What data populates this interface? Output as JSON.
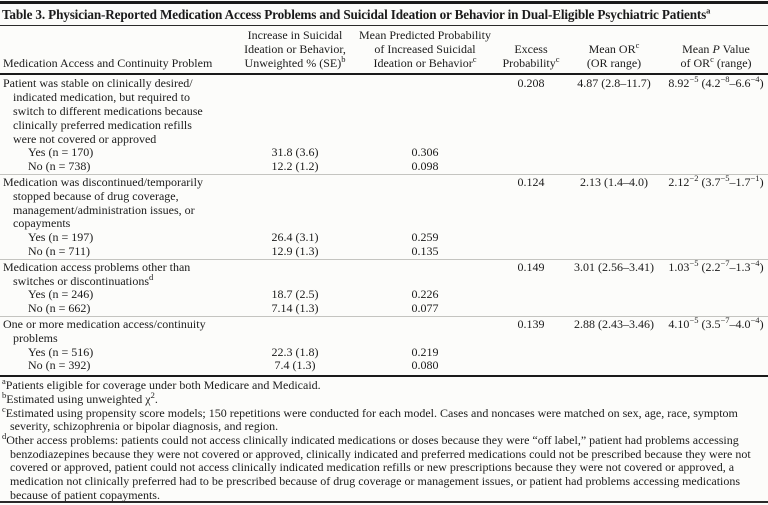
{
  "title": {
    "text": "Table 3. Physician-Reported Medication Access Problems and Suicidal Ideation or Behavior in Dual-Eligible Psychiatric Patients",
    "sup": "a"
  },
  "columns": [
    "Medication Access and Continuity Problem",
    "Increase in Suicidal\nIdeation or Behavior,\nUnweighted % (SE)[sup]b[/sup]",
    "Mean Predicted Probability\nof Increased Suicidal\nIdeation or Behavior[sup]c[/sup]",
    "Excess\nProbability[sup]c[/sup]",
    "Mean OR[sup]c[/sup]\n(OR range)",
    "Mean [i]P[/i] Value\nof OR[sup]c[/sup] (range)"
  ],
  "sections": [
    {
      "label": "Patient was stable on clinically desired/\nindicated medication, but required to\nswitch to different medications because\nclinically preferred medication refills\nwere not covered or approved",
      "excess": "0.208",
      "or": "4.87 (2.8–11.7)",
      "p": "8.92[sup]−5[/sup] (4.2[sup]−8[/sup]–6.6[sup]−4[/sup])",
      "rows": [
        {
          "label": "Yes (n = 170)",
          "increase": "31.8 (3.6)",
          "prob": "0.306"
        },
        {
          "label": "No (n = 738)",
          "increase": "12.2 (1.2)",
          "prob": "0.098"
        }
      ]
    },
    {
      "label": "Medication was discontinued/temporarily\nstopped because of drug coverage,\nmanagement/administration issues, or\ncopayments",
      "excess": "0.124",
      "or": "2.13 (1.4–4.0)",
      "p": "2.12[sup]−2[/sup] (3.7[sup]−5[/sup]–1.7[sup]−1[/sup])",
      "rows": [
        {
          "label": "Yes (n = 197)",
          "increase": "26.4 (3.1)",
          "prob": "0.259"
        },
        {
          "label": "No (n = 711)",
          "increase": "12.9 (1.3)",
          "prob": "0.135"
        }
      ]
    },
    {
      "label": "Medication access problems other than\nswitches or discontinuations[sup]d[/sup]",
      "excess": "0.149",
      "or": "3.01 (2.56–3.41)",
      "p": "1.03[sup]−5[/sup] (2.2[sup]−7[/sup]–1.3[sup]−4[/sup])",
      "rows": [
        {
          "label": "Yes (n = 246)",
          "increase": "18.7 (2.5)",
          "prob": "0.226"
        },
        {
          "label": "No (n = 662)",
          "increase": "7.14 (1.3)",
          "prob": "0.077"
        }
      ]
    },
    {
      "label": "One or more medication access/continuity\nproblems",
      "excess": "0.139",
      "or": "2.88 (2.43–3.46)",
      "p": "4.10[sup]−5[/sup] (3.5[sup]−7[/sup]–4.0[sup]−4[/sup])",
      "rows": [
        {
          "label": "Yes (n = 516)",
          "increase": "22.3 (1.8)",
          "prob": "0.219"
        },
        {
          "label": "No (n = 392)",
          "increase": "7.4 (1.3)",
          "prob": "0.080"
        }
      ]
    }
  ],
  "footnotes": [
    {
      "sup": "a",
      "text": "Patients eligible for coverage under both Medicare and Medicaid."
    },
    {
      "sup": "b",
      "text": "Estimated using unweighted χ[sup]2[/sup]."
    },
    {
      "sup": "c",
      "text": "Estimated using propensity score models; 150 repetitions were conducted for each model. Cases and noncases were matched on sex, age, race, symptom severity, schizophrenia or bipolar diagnosis, and region."
    },
    {
      "sup": "d",
      "text": "Other access problems: patients could not access clinically indicated medications or doses because they were “off label,” patient had problems accessing benzodiazepines because they were not covered or approved, clinically indicated and preferred medications could not be prescribed because they were not covered or approved, patient could not access clinically indicated medication refills or new prescriptions because they were not covered or approved, a medication not clinically preferred had to be prescribed because of drug coverage or management issues, or patient had problems accessing medications because of patient copayments."
    }
  ]
}
